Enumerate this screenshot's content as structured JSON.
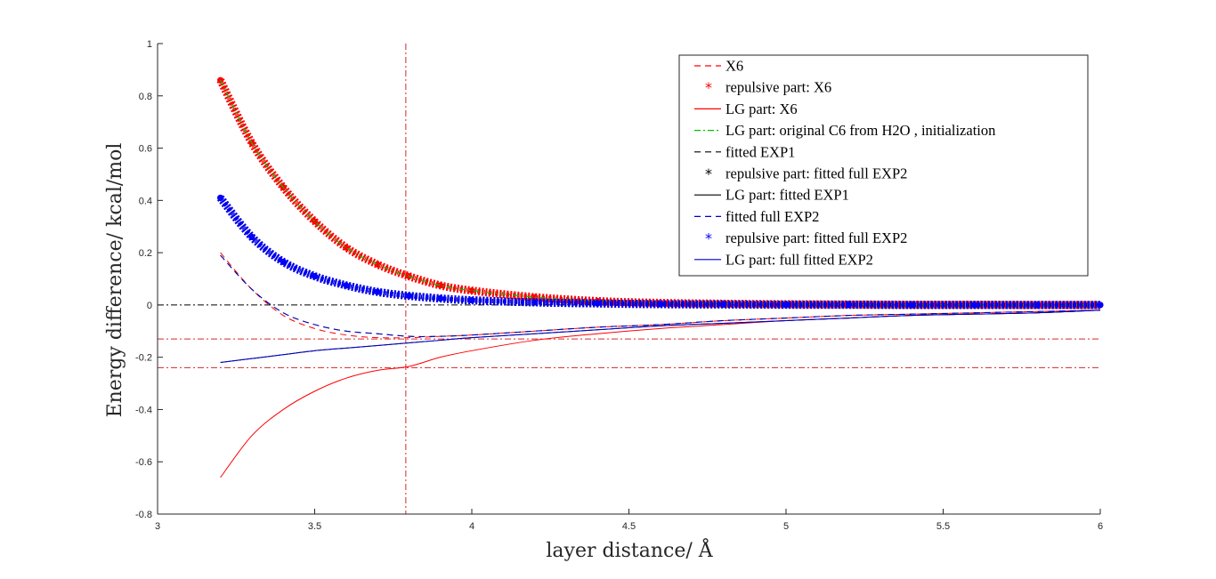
{
  "chart_data": {
    "type": "line",
    "xlabel": "layer distance/ Å",
    "ylabel": "Energy difference/ kcal/mol",
    "xlim": [
      3,
      6
    ],
    "ylim": [
      -0.8,
      1
    ],
    "xticks": [
      "3",
      "3.5",
      "4",
      "4.5",
      "5",
      "5.5",
      "6"
    ],
    "yticks": [
      "-0.8",
      "-0.6",
      "-0.4",
      "-0.2",
      "0",
      "0.2",
      "0.4",
      "0.6",
      "0.8",
      "1"
    ],
    "grid": false,
    "legend_position": "top-right",
    "reference_lines": {
      "vertical_x": 3.79,
      "horizontal_y": [
        0,
        -0.13,
        -0.24
      ],
      "colors": [
        "#000000",
        "#d62728",
        "#d62728"
      ]
    },
    "x": [
      3.2,
      3.3,
      3.4,
      3.5,
      3.6,
      3.7,
      3.8,
      3.9,
      4.0,
      4.2,
      4.4,
      4.6,
      4.8,
      5.0,
      5.2,
      5.4,
      5.6,
      5.8,
      6.0
    ],
    "series": [
      {
        "name": "X6",
        "color": "#ff0000",
        "style": "dashed",
        "values": [
          0.2,
          0.06,
          -0.04,
          -0.09,
          -0.115,
          -0.125,
          -0.125,
          -0.12,
          -0.115,
          -0.1,
          -0.085,
          -0.075,
          -0.06,
          -0.05,
          -0.04,
          -0.035,
          -0.03,
          -0.025,
          -0.02
        ]
      },
      {
        "name": "repulsive part: X6",
        "color": "#ff0000",
        "style": "star",
        "values": [
          0.86,
          0.62,
          0.45,
          0.32,
          0.22,
          0.155,
          0.11,
          0.075,
          0.055,
          0.03,
          0.015,
          0.008,
          0.005,
          0.003,
          0.002,
          0.001,
          0.001,
          0.0,
          0.0
        ]
      },
      {
        "name": "LG part: X6",
        "color": "#ff0000",
        "style": "solid",
        "values": [
          -0.66,
          -0.5,
          -0.4,
          -0.33,
          -0.28,
          -0.25,
          -0.235,
          -0.2,
          -0.175,
          -0.135,
          -0.11,
          -0.09,
          -0.075,
          -0.06,
          -0.05,
          -0.04,
          -0.035,
          -0.03,
          -0.02
        ]
      },
      {
        "name": "LG part: original C6 from H2O , initialization",
        "color": "#00c000",
        "style": "dashdot",
        "values": [
          0.86,
          0.62,
          0.45,
          0.32,
          0.22,
          0.155,
          0.11,
          0.075,
          0.055,
          0.03,
          0.015,
          0.008,
          0.005,
          0.003,
          0.002,
          0.001,
          0.001,
          0.0,
          0.0
        ]
      },
      {
        "name": "fitted EXP1",
        "color": "#000000",
        "style": "dashed",
        "values": [
          0.19,
          0.06,
          -0.03,
          -0.075,
          -0.1,
          -0.11,
          -0.12,
          -0.12,
          -0.115,
          -0.1,
          -0.085,
          -0.075,
          -0.06,
          -0.05,
          -0.04,
          -0.035,
          -0.03,
          -0.025,
          -0.02
        ]
      },
      {
        "name": "repulsive part: fitted full EXP2",
        "color": "#000000",
        "style": "star",
        "values": [
          0.41,
          0.26,
          0.165,
          0.11,
          0.075,
          0.05,
          0.035,
          0.025,
          0.018,
          0.01,
          0.006,
          0.003,
          0.002,
          0.001,
          0.001,
          0.0,
          0.0,
          0.0,
          0.0
        ]
      },
      {
        "name": "LG part: fitted EXP1",
        "color": "#000000",
        "style": "solid",
        "values": [
          -0.22,
          -0.205,
          -0.19,
          -0.175,
          -0.165,
          -0.155,
          -0.145,
          -0.135,
          -0.125,
          -0.11,
          -0.095,
          -0.08,
          -0.07,
          -0.06,
          -0.05,
          -0.04,
          -0.035,
          -0.03,
          -0.02
        ]
      },
      {
        "name": "fitted full EXP2",
        "color": "#0000cc",
        "style": "dashed",
        "values": [
          0.19,
          0.06,
          -0.03,
          -0.075,
          -0.1,
          -0.11,
          -0.12,
          -0.12,
          -0.115,
          -0.1,
          -0.085,
          -0.075,
          -0.06,
          -0.05,
          -0.04,
          -0.035,
          -0.03,
          -0.025,
          -0.02
        ]
      },
      {
        "name": "repulsive part: fitted full EXP2",
        "color": "#0000ff",
        "style": "star",
        "values": [
          0.41,
          0.26,
          0.165,
          0.11,
          0.075,
          0.05,
          0.035,
          0.025,
          0.018,
          0.01,
          0.006,
          0.003,
          0.002,
          0.001,
          0.001,
          0.0,
          0.0,
          0.0,
          0.0
        ]
      },
      {
        "name": "LG part: full fitted EXP2",
        "color": "#0000cc",
        "style": "solid",
        "values": [
          -0.22,
          -0.205,
          -0.19,
          -0.175,
          -0.165,
          -0.155,
          -0.145,
          -0.135,
          -0.125,
          -0.11,
          -0.095,
          -0.08,
          -0.07,
          -0.06,
          -0.05,
          -0.04,
          -0.035,
          -0.03,
          -0.02
        ]
      }
    ]
  }
}
